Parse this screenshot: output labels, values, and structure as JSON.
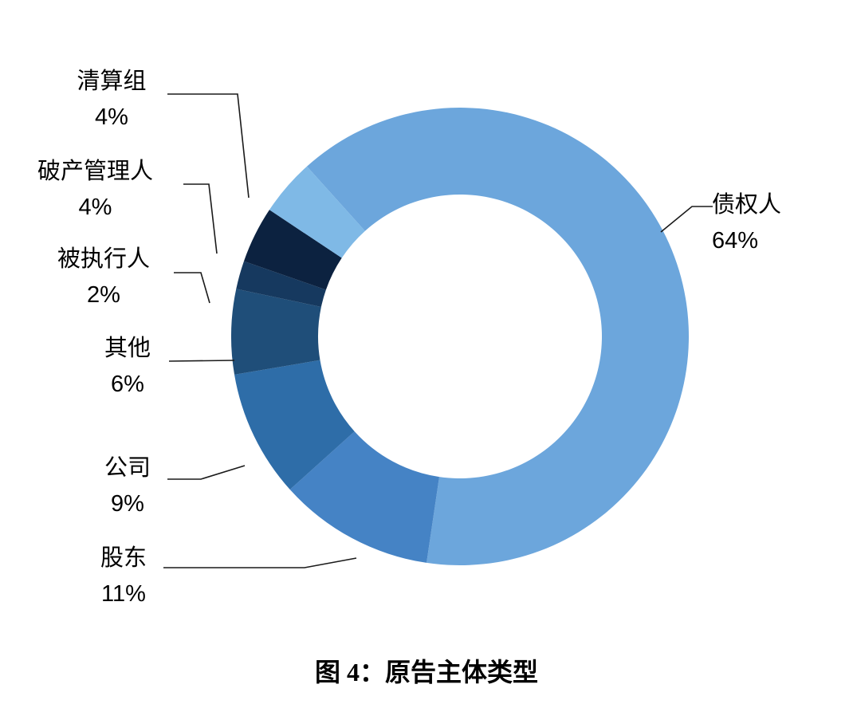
{
  "figure": {
    "background": "#ffffff",
    "title": "图 4：原告主体类型"
  },
  "chart_data": {
    "type": "pie",
    "subtype": "donut",
    "title": "图 4：原告主体类型",
    "legend_position": "none",
    "labels_position": "outside-with-leader-lines",
    "start_angle_deg": -42,
    "hole_ratio": 0.62,
    "slices": [
      {
        "id": "creditor",
        "label": "债权人",
        "value": 64,
        "pct_label": "64%",
        "color": "#6CA6DC"
      },
      {
        "id": "shareholder",
        "label": "股东",
        "value": 11,
        "pct_label": "11%",
        "color": "#4583C5"
      },
      {
        "id": "company",
        "label": "公司",
        "value": 9,
        "pct_label": "9%",
        "color": "#2E6DA8"
      },
      {
        "id": "other",
        "label": "其他",
        "value": 6,
        "pct_label": "6%",
        "color": "#1F4E79"
      },
      {
        "id": "judgment-debtor",
        "label": "被执行人",
        "value": 2,
        "pct_label": "2%",
        "color": "#16395F"
      },
      {
        "id": "bankruptcy-administrator",
        "label": "破产管理人",
        "value": 4,
        "pct_label": "4%",
        "color": "#0C2240"
      },
      {
        "id": "liquidation-group",
        "label": "清算组",
        "value": 4,
        "pct_label": "4%",
        "color": "#7FB9E6"
      }
    ]
  }
}
